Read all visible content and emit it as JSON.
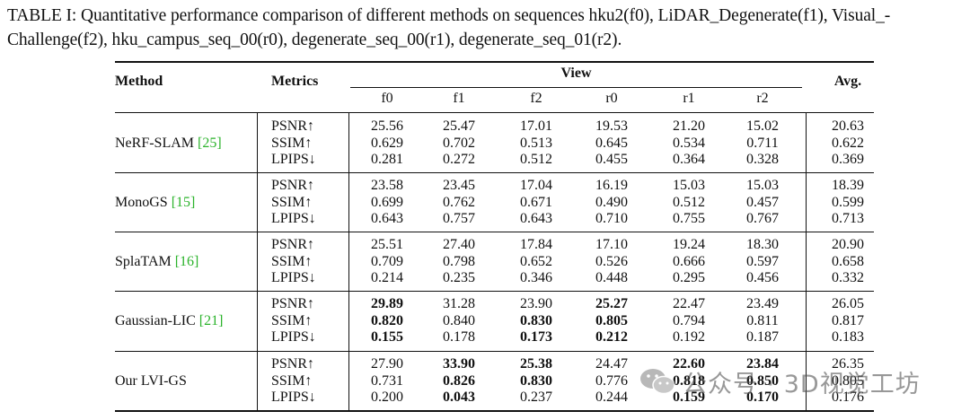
{
  "caption": {
    "line1": "TABLE I: Quantitative performance comparison of different methods on sequences hku2(f0), LiDAR_Degenerate(f1), Visual_-",
    "line2": "Challenge(f2), hku_campus_seq_00(r0), degenerate_seq_00(r1), degenerate_seq_01(r2)."
  },
  "headers": {
    "method": "Method",
    "metrics": "Metrics",
    "view": "View",
    "avg": "Avg.",
    "sequences": [
      "f0",
      "f1",
      "f2",
      "r0",
      "r1",
      "r2"
    ]
  },
  "metric_names": [
    "PSNR↑",
    "SSIM↑",
    "LPIPS↓"
  ],
  "groups": [
    {
      "method": "NeRF-SLAM ",
      "cite": "[25]",
      "rows": [
        {
          "values": [
            "25.56",
            "25.47",
            "17.01",
            "19.53",
            "21.20",
            "15.02"
          ],
          "avg": "20.63",
          "bold": []
        },
        {
          "values": [
            "0.629",
            "0.702",
            "0.513",
            "0.645",
            "0.534",
            "0.711"
          ],
          "avg": "0.622",
          "bold": []
        },
        {
          "values": [
            "0.281",
            "0.272",
            "0.512",
            "0.455",
            "0.364",
            "0.328"
          ],
          "avg": "0.369",
          "bold": []
        }
      ]
    },
    {
      "method": "MonoGS ",
      "cite": "[15]",
      "rows": [
        {
          "values": [
            "23.58",
            "23.45",
            "17.04",
            "16.19",
            "15.03",
            "15.03"
          ],
          "avg": "18.39",
          "bold": []
        },
        {
          "values": [
            "0.699",
            "0.762",
            "0.671",
            "0.490",
            "0.512",
            "0.457"
          ],
          "avg": "0.599",
          "bold": []
        },
        {
          "values": [
            "0.643",
            "0.757",
            "0.643",
            "0.710",
            "0.755",
            "0.767"
          ],
          "avg": "0.713",
          "bold": []
        }
      ]
    },
    {
      "method": "SplaTAM ",
      "cite": "[16]",
      "rows": [
        {
          "values": [
            "25.51",
            "27.40",
            "17.84",
            "17.10",
            "19.24",
            "18.30"
          ],
          "avg": "20.90",
          "bold": []
        },
        {
          "values": [
            "0.709",
            "0.798",
            "0.652",
            "0.526",
            "0.666",
            "0.597"
          ],
          "avg": "0.658",
          "bold": []
        },
        {
          "values": [
            "0.214",
            "0.235",
            "0.346",
            "0.448",
            "0.295",
            "0.456"
          ],
          "avg": "0.332",
          "bold": []
        }
      ]
    },
    {
      "method": "Gaussian-LIC ",
      "cite": "[21]",
      "rows": [
        {
          "values": [
            "29.89",
            "31.28",
            "23.90",
            "25.27",
            "22.47",
            "23.49"
          ],
          "avg": "26.05",
          "bold": [
            0,
            3
          ]
        },
        {
          "values": [
            "0.820",
            "0.840",
            "0.830",
            "0.805",
            "0.794",
            "0.811"
          ],
          "avg": "0.817",
          "bold": [
            0,
            2,
            3
          ]
        },
        {
          "values": [
            "0.155",
            "0.178",
            "0.173",
            "0.212",
            "0.192",
            "0.187"
          ],
          "avg": "0.183",
          "bold": [
            0,
            2,
            3
          ]
        }
      ]
    },
    {
      "method": "Our LVI-GS",
      "cite": "",
      "rows": [
        {
          "values": [
            "27.90",
            "33.90",
            "25.38",
            "24.47",
            "22.60",
            "23.84"
          ],
          "avg": "26.35",
          "bold": [
            1,
            2,
            4,
            5
          ]
        },
        {
          "values": [
            "0.731",
            "0.826",
            "0.830",
            "0.776",
            "0.818",
            "0.850"
          ],
          "avg": "0.805",
          "bold": [
            1,
            2,
            4,
            5
          ]
        },
        {
          "values": [
            "0.200",
            "0.043",
            "0.237",
            "0.244",
            "0.159",
            "0.170"
          ],
          "avg": "0.176",
          "bold": [
            1,
            4,
            5
          ]
        }
      ]
    }
  ],
  "watermark": {
    "icon": "wechat-icon",
    "text": "公众号 · 3D视觉工坊"
  }
}
